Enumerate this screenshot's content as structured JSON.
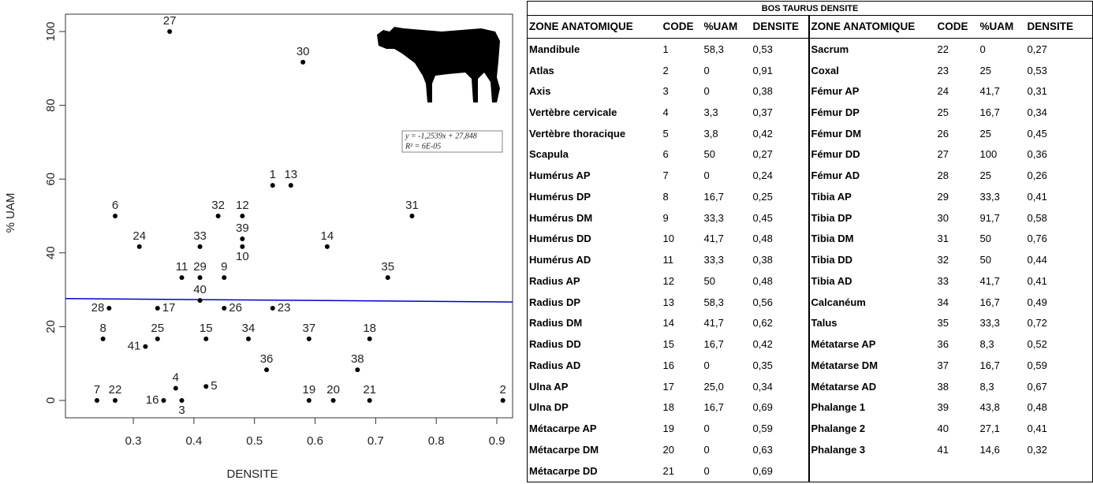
{
  "chart_data": {
    "type": "scatter",
    "x_label": "DENSITE",
    "y_label": "% UAM",
    "x": [
      0.53,
      0.91,
      0.38,
      0.37,
      0.42,
      0.27,
      0.24,
      0.25,
      0.45,
      0.48,
      0.38,
      0.48,
      0.56,
      0.62,
      0.42,
      0.35,
      0.34,
      0.69,
      0.59,
      0.63,
      0.69,
      0.27,
      0.53,
      0.31,
      0.34,
      0.45,
      0.36,
      0.26,
      0.41,
      0.58,
      0.76,
      0.44,
      0.41,
      0.49,
      0.72,
      0.52,
      0.59,
      0.67,
      0.48,
      0.41,
      0.32
    ],
    "values": [
      58.3,
      0,
      0,
      3.3,
      3.8,
      50,
      0,
      16.7,
      33.3,
      41.7,
      33.3,
      50,
      58.3,
      41.7,
      16.7,
      0,
      25,
      16.7,
      0,
      0,
      0,
      0,
      25,
      41.7,
      16.7,
      25,
      100,
      25,
      33.3,
      91.7,
      50,
      50,
      41.7,
      16.7,
      33.3,
      8.3,
      16.7,
      8.3,
      43.8,
      27.1,
      14.6
    ],
    "labels": [
      1,
      2,
      3,
      4,
      5,
      6,
      7,
      8,
      9,
      10,
      11,
      12,
      13,
      14,
      15,
      16,
      17,
      18,
      19,
      20,
      21,
      22,
      23,
      24,
      25,
      26,
      27,
      28,
      29,
      30,
      31,
      32,
      33,
      34,
      35,
      36,
      37,
      38,
      39,
      40,
      41
    ],
    "color": "#000000",
    "xlim": [
      0.188,
      0.926
    ],
    "ylim": [
      -4.7,
      104.7
    ],
    "xticks": [
      0.3,
      0.4,
      0.5,
      0.6,
      0.7,
      0.8,
      0.9
    ],
    "yticks": [
      0,
      20,
      40,
      60,
      80,
      100
    ],
    "trendline": {
      "slope": -1.2539,
      "intercept": 27.848,
      "color": "#0000cc",
      "equation": "y = -1,2539x + 27,848",
      "r2": "R² = 6E-05"
    }
  },
  "table": {
    "title": "BOS TAURUS DENSITE",
    "columns": [
      "ZONE ANATOMIQUE",
      "CODE",
      "%UAM",
      "DENSITE",
      "ZONE ANATOMIQUE",
      "CODE",
      "%UAM",
      "DENSITE"
    ],
    "rows": [
      [
        "Mandibule",
        1,
        "58,3",
        "0,53",
        "Sacrum",
        22,
        "0",
        "0,27"
      ],
      [
        "Atlas",
        2,
        "0",
        "0,91",
        "Coxal",
        23,
        "25",
        "0,53"
      ],
      [
        "Axis",
        3,
        "0",
        "0,38",
        "Fémur AP",
        24,
        "41,7",
        "0,31"
      ],
      [
        "Vertèbre cervicale",
        4,
        "3,3",
        "0,37",
        "Fémur DP",
        25,
        "16,7",
        "0,34"
      ],
      [
        "Vertèbre thoracique",
        5,
        "3,8",
        "0,42",
        "Fémur DM",
        26,
        "25",
        "0,45"
      ],
      [
        "Scapula",
        6,
        "50",
        "0,27",
        "Fémur DD",
        27,
        "100",
        "0,36"
      ],
      [
        "Humérus AP",
        7,
        "0",
        "0,24",
        "Fémur AD",
        28,
        "25",
        "0,26"
      ],
      [
        "Humérus DP",
        8,
        "16,7",
        "0,25",
        "Tibia AP",
        29,
        "33,3",
        "0,41"
      ],
      [
        "Humérus DM",
        9,
        "33,3",
        "0,45",
        "Tibia DP",
        30,
        "91,7",
        "0,58"
      ],
      [
        "Humérus DD",
        10,
        "41,7",
        "0,48",
        "Tibia DM",
        31,
        "50",
        "0,76"
      ],
      [
        "Humérus AD",
        11,
        "33,3",
        "0,38",
        "Tibia DD",
        32,
        "50",
        "0,44"
      ],
      [
        "Radius AP",
        12,
        "50",
        "0,48",
        "Tibia AD",
        33,
        "41,7",
        "0,41"
      ],
      [
        "Radius DP",
        13,
        "58,3",
        "0,56",
        "Calcanéum",
        34,
        "16,7",
        "0,49"
      ],
      [
        "Radius DM",
        14,
        "41,7",
        "0,62",
        "Talus",
        35,
        "33,3",
        "0,72"
      ],
      [
        "Radius DD",
        15,
        "16,7",
        "0,42",
        "Métatarse AP",
        36,
        "8,3",
        "0,52"
      ],
      [
        "Radius AD",
        16,
        "0",
        "0,35",
        "Métatarse DM",
        37,
        "16,7",
        "0,59"
      ],
      [
        "Ulna AP",
        17,
        "25,0",
        "0,34",
        "Métatarse AD",
        38,
        "8,3",
        "0,67"
      ],
      [
        "Ulna DP",
        18,
        "16,7",
        "0,69",
        "Phalange 1",
        39,
        "43,8",
        "0,48"
      ],
      [
        "Métacarpe AP",
        19,
        "0",
        "0,59",
        "Phalange 2",
        40,
        "27,1",
        "0,41"
      ],
      [
        "Métacarpe DM",
        20,
        "0",
        "0,63",
        "Phalange 3",
        41,
        "14,6",
        "0,32"
      ],
      [
        "Métacarpe DD",
        21,
        "0",
        "0,69"
      ]
    ]
  }
}
